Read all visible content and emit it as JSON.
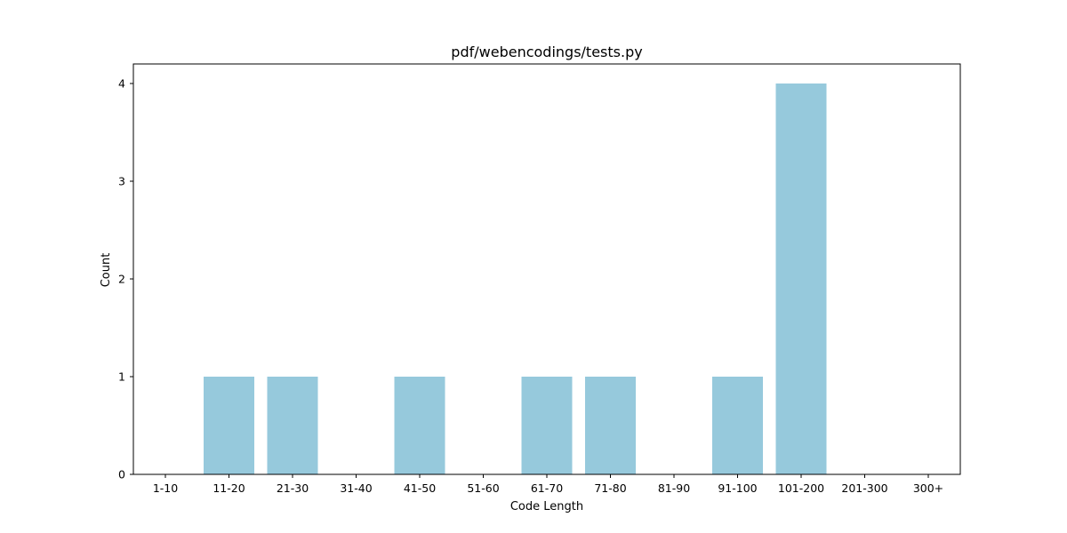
{
  "chart_data": {
    "type": "bar",
    "title": "pdf/webencodings/tests.py",
    "xlabel": "Code Length",
    "ylabel": "Count",
    "categories": [
      "1-10",
      "11-20",
      "21-30",
      "31-40",
      "41-50",
      "51-60",
      "61-70",
      "71-80",
      "81-90",
      "91-100",
      "101-200",
      "201-300",
      "300+"
    ],
    "values": [
      0,
      1,
      1,
      0,
      1,
      0,
      1,
      1,
      0,
      1,
      4,
      0,
      0
    ],
    "yticks": [
      0,
      1,
      2,
      3,
      4
    ],
    "ylim": [
      0,
      4.2
    ],
    "grid": false,
    "bar_color": "#96c9dc"
  }
}
